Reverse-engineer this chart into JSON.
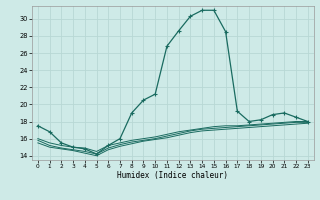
{
  "xlabel": "Humidex (Indice chaleur)",
  "bg_color": "#ceeae7",
  "grid_color": "#b8d8d4",
  "line_color": "#1a6b60",
  "xlim": [
    -0.5,
    23.5
  ],
  "ylim": [
    13.5,
    31.5
  ],
  "xticks": [
    0,
    1,
    2,
    3,
    4,
    5,
    6,
    7,
    8,
    9,
    10,
    11,
    12,
    13,
    14,
    15,
    16,
    17,
    18,
    19,
    20,
    21,
    22,
    23
  ],
  "yticks": [
    14,
    16,
    18,
    20,
    22,
    24,
    26,
    28,
    30
  ],
  "main_x": [
    0,
    1,
    2,
    3,
    4,
    5,
    6,
    7,
    8,
    9,
    10,
    11,
    12,
    13,
    14,
    15,
    16,
    17,
    18,
    19,
    20,
    21,
    22,
    23
  ],
  "main_y": [
    17.5,
    16.8,
    15.5,
    15.0,
    14.8,
    14.2,
    15.2,
    16.0,
    19.0,
    20.5,
    21.2,
    26.8,
    28.6,
    30.3,
    31.0,
    31.0,
    28.5,
    19.2,
    18.0,
    18.2,
    18.8,
    19.0,
    18.5,
    18.0
  ],
  "line2_x": [
    0,
    1,
    2,
    3,
    4,
    5,
    6,
    7,
    8,
    9,
    10,
    11,
    12,
    13,
    14,
    15,
    16,
    17,
    18,
    19,
    20,
    21,
    22,
    23
  ],
  "line2_y": [
    16.0,
    15.5,
    15.2,
    15.0,
    14.9,
    14.5,
    15.2,
    15.5,
    15.8,
    16.0,
    16.2,
    16.5,
    16.8,
    17.0,
    17.2,
    17.4,
    17.5,
    17.5,
    17.6,
    17.7,
    17.8,
    17.9,
    18.0,
    18.0
  ],
  "line3_x": [
    0,
    1,
    2,
    3,
    4,
    5,
    6,
    7,
    8,
    9,
    10,
    11,
    12,
    13,
    14,
    15,
    16,
    17,
    18,
    19,
    20,
    21,
    22,
    23
  ],
  "line3_y": [
    15.8,
    15.2,
    14.9,
    14.7,
    14.5,
    14.2,
    14.9,
    15.3,
    15.6,
    15.8,
    16.0,
    16.3,
    16.6,
    16.9,
    17.1,
    17.2,
    17.3,
    17.4,
    17.5,
    17.6,
    17.7,
    17.8,
    17.9,
    17.9
  ],
  "line4_x": [
    0,
    1,
    2,
    3,
    4,
    5,
    6,
    7,
    8,
    9,
    10,
    11,
    12,
    13,
    14,
    15,
    16,
    17,
    18,
    19,
    20,
    21,
    22,
    23
  ],
  "line4_y": [
    15.5,
    15.0,
    14.8,
    14.6,
    14.3,
    14.0,
    14.7,
    15.1,
    15.4,
    15.7,
    15.9,
    16.1,
    16.4,
    16.7,
    16.9,
    17.0,
    17.1,
    17.2,
    17.3,
    17.4,
    17.5,
    17.6,
    17.7,
    17.8
  ]
}
